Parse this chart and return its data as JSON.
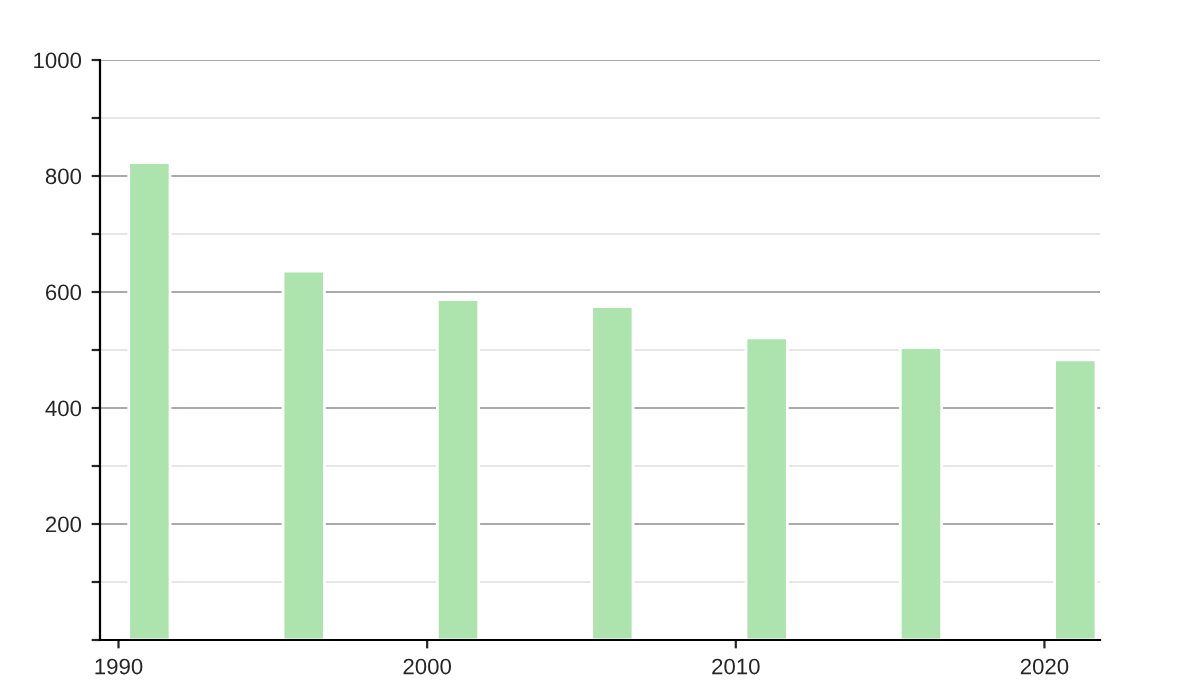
{
  "chart_data": {
    "type": "bar",
    "x": [
      1991,
      1996,
      2001,
      2006,
      2011,
      2016,
      2021
    ],
    "values": [
      823,
      636,
      587,
      575,
      521,
      504,
      483
    ],
    "color": "#ade4ad",
    "xlim": [
      1989.4,
      2021.8
    ],
    "xticks": [
      1990,
      2000,
      2010,
      2020
    ],
    "ylim": [
      0,
      1000
    ],
    "yticks": [
      {
        "value": 0,
        "label": null
      },
      {
        "value": 100,
        "label": null
      },
      200,
      {
        "value": 300,
        "label": null
      },
      400,
      {
        "value": 500,
        "label": null
      },
      600,
      {
        "value": 700,
        "label": null
      },
      800,
      {
        "value": 900,
        "label": null
      },
      1000
    ],
    "grid": "y"
  }
}
